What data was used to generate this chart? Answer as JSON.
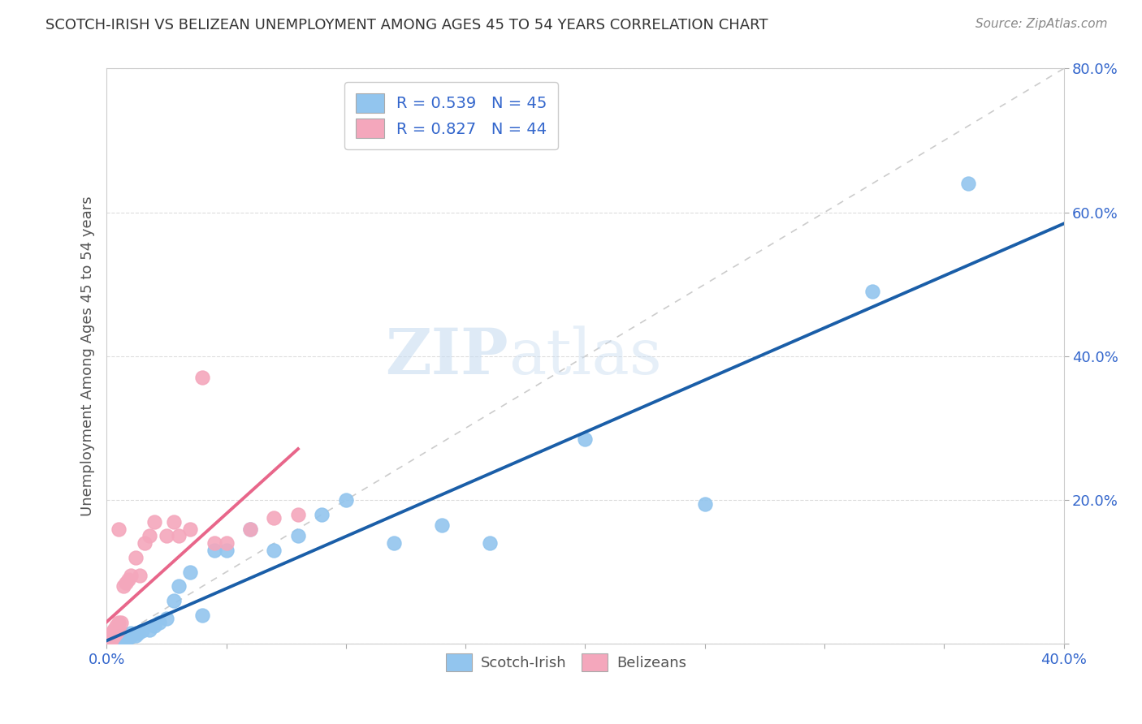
{
  "title": "SCOTCH-IRISH VS BELIZEAN UNEMPLOYMENT AMONG AGES 45 TO 54 YEARS CORRELATION CHART",
  "source": "Source: ZipAtlas.com",
  "ylabel": "Unemployment Among Ages 45 to 54 years",
  "xlim": [
    0,
    0.4
  ],
  "ylim": [
    0,
    0.8
  ],
  "scotch_irish_R": 0.539,
  "scotch_irish_N": 45,
  "belizean_R": 0.827,
  "belizean_N": 44,
  "scotch_irish_color": "#92C5EE",
  "belizean_color": "#F4A7BC",
  "scotch_irish_line_color": "#1A5EA8",
  "belizean_line_color": "#E8668A",
  "legend_text_color": "#3366CC",
  "watermark_zip": "ZIP",
  "watermark_atlas": "atlas",
  "scotch_irish_x": [
    0.001,
    0.001,
    0.001,
    0.001,
    0.001,
    0.002,
    0.002,
    0.003,
    0.003,
    0.004,
    0.004,
    0.005,
    0.005,
    0.005,
    0.006,
    0.007,
    0.008,
    0.009,
    0.01,
    0.01,
    0.012,
    0.013,
    0.015,
    0.018,
    0.02,
    0.022,
    0.025,
    0.028,
    0.03,
    0.035,
    0.04,
    0.045,
    0.05,
    0.06,
    0.07,
    0.08,
    0.09,
    0.1,
    0.12,
    0.14,
    0.16,
    0.2,
    0.25,
    0.32,
    0.36
  ],
  "scotch_irish_y": [
    0.001,
    0.001,
    0.002,
    0.003,
    0.004,
    0.001,
    0.002,
    0.002,
    0.003,
    0.002,
    0.005,
    0.003,
    0.005,
    0.01,
    0.005,
    0.008,
    0.01,
    0.008,
    0.01,
    0.015,
    0.012,
    0.015,
    0.018,
    0.02,
    0.025,
    0.03,
    0.035,
    0.06,
    0.08,
    0.1,
    0.04,
    0.13,
    0.13,
    0.16,
    0.13,
    0.15,
    0.18,
    0.2,
    0.14,
    0.165,
    0.14,
    0.285,
    0.195,
    0.49,
    0.64
  ],
  "belizean_x": [
    0.001,
    0.001,
    0.001,
    0.001,
    0.001,
    0.001,
    0.001,
    0.001,
    0.001,
    0.001,
    0.001,
    0.002,
    0.002,
    0.002,
    0.002,
    0.002,
    0.003,
    0.003,
    0.003,
    0.004,
    0.004,
    0.005,
    0.005,
    0.005,
    0.006,
    0.007,
    0.008,
    0.009,
    0.01,
    0.012,
    0.014,
    0.016,
    0.018,
    0.02,
    0.025,
    0.028,
    0.03,
    0.035,
    0.04,
    0.045,
    0.05,
    0.06,
    0.07,
    0.08
  ],
  "belizean_y": [
    0.001,
    0.001,
    0.002,
    0.003,
    0.004,
    0.005,
    0.007,
    0.008,
    0.01,
    0.01,
    0.012,
    0.005,
    0.008,
    0.01,
    0.012,
    0.015,
    0.01,
    0.015,
    0.02,
    0.015,
    0.025,
    0.02,
    0.03,
    0.16,
    0.03,
    0.08,
    0.085,
    0.09,
    0.095,
    0.12,
    0.095,
    0.14,
    0.15,
    0.17,
    0.15,
    0.17,
    0.15,
    0.16,
    0.37,
    0.14,
    0.14,
    0.16,
    0.175,
    0.18
  ],
  "diag_line_color": "#CCCCCC",
  "grid_color": "#DDDDDD"
}
